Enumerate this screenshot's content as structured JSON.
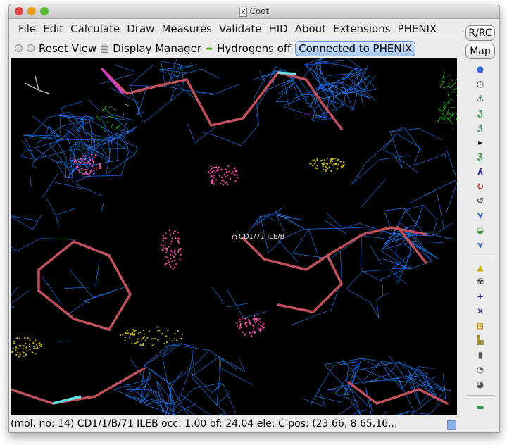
{
  "window": {
    "title": "Coot",
    "title_icon": "X"
  },
  "menu": [
    "File",
    "Edit",
    "Calculate",
    "Draw",
    "Measures",
    "Validate",
    "HID",
    "About",
    "Extensions",
    "PHENIX"
  ],
  "toolbar": {
    "reset_view": "Reset View",
    "display_manager": "Display Manager",
    "hydrogens": "Hydrogens off",
    "phenix": "Connected to PHENIX"
  },
  "side": {
    "rrc": "R/RC",
    "map": "Map",
    "icons": [
      "rotate-view-icon",
      "clock-icon",
      "anchor-icon",
      "refine-icon",
      "regularize-icon",
      "arrow-right-icon",
      "rigid-body-icon",
      "rotamer-icon",
      "torsion-icon",
      "flip-peptide-icon",
      "side-chain-icon",
      "slide-icon",
      "edit-chi-icon",
      "add-atom-icon",
      "radiation-icon",
      "add-residue-icon",
      "mutate-icon",
      "add-water-icon",
      "stamp-icon",
      "delete-icon",
      "undo-icon",
      "redo-icon",
      "flag-icon"
    ]
  },
  "canvas": {
    "atom_label": "CD1/71 ILE/B",
    "colors": {
      "map": "#1e6fe0",
      "bonds": "#c0505a",
      "dots": "#ff50b0",
      "diff_map": "#20d020"
    }
  },
  "status": "(mol. no: 14)  CD1/1/B/71 ILEB occ:  1.00 bf: 24.04 ele:  C pos: (23.66, 8.65,16..."
}
